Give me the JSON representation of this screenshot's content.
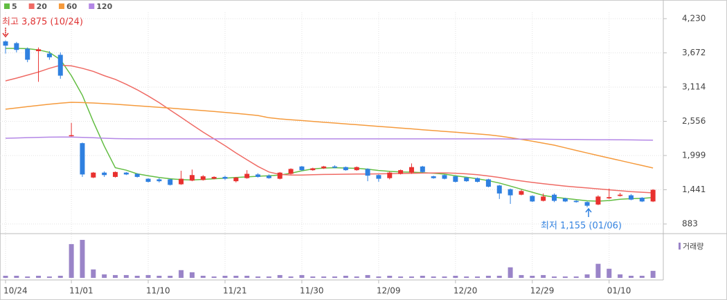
{
  "chart_data": {
    "type": "candlestick",
    "categories": [
      "10/24",
      null,
      null,
      null,
      null,
      null,
      "11/01",
      null,
      null,
      null,
      null,
      null,
      null,
      "11/10",
      null,
      null,
      null,
      null,
      null,
      null,
      "11/21",
      null,
      null,
      null,
      null,
      null,
      null,
      "11/30",
      null,
      null,
      null,
      null,
      null,
      null,
      "12/09",
      null,
      null,
      null,
      null,
      null,
      null,
      "12/20",
      null,
      null,
      null,
      null,
      null,
      null,
      "12/29",
      null,
      null,
      null,
      null,
      null,
      null,
      "01/10",
      null,
      null,
      null,
      null
    ],
    "open": [
      3860,
      3830,
      3740,
      3700,
      3660,
      3640,
      2320,
      2200,
      1640,
      1720,
      1650,
      1720,
      1700,
      1620,
      1610,
      1610,
      1530,
      1590,
      1600,
      1620,
      1650,
      1580,
      1630,
      1690,
      1670,
      1620,
      1700,
      1820,
      1760,
      1790,
      1820,
      1810,
      1760,
      1780,
      1680,
      1630,
      1700,
      1720,
      1820,
      1660,
      1680,
      1660,
      1640,
      1630,
      1610,
      1510,
      1450,
      1360,
      1340,
      1260,
      1360,
      1300,
      1260,
      1240,
      1200,
      1300,
      1340,
      1350,
      1310,
      1250
    ],
    "close": [
      3790,
      3720,
      3560,
      3730,
      3600,
      3300,
      2330,
      1690,
      1720,
      1680,
      1730,
      1690,
      1650,
      1570,
      1580,
      1520,
      1620,
      1680,
      1660,
      1650,
      1620,
      1640,
      1700,
      1650,
      1630,
      1720,
      1780,
      1760,
      1790,
      1820,
      1800,
      1760,
      1810,
      1670,
      1620,
      1720,
      1760,
      1810,
      1730,
      1630,
      1620,
      1570,
      1580,
      1570,
      1490,
      1380,
      1350,
      1420,
      1250,
      1330,
      1260,
      1250,
      1240,
      1180,
      1330,
      1320,
      1360,
      1280,
      1250,
      1440
    ],
    "high": [
      3875,
      3850,
      3760,
      3760,
      3700,
      3680,
      2530,
      2210,
      1730,
      1740,
      1740,
      1730,
      1710,
      1630,
      1630,
      1620,
      1750,
      1770,
      1680,
      1660,
      1670,
      1650,
      1760,
      1710,
      1690,
      1730,
      1790,
      1830,
      1800,
      1830,
      1840,
      1820,
      1820,
      1790,
      1690,
      1740,
      1770,
      1870,
      1830,
      1670,
      1690,
      1670,
      1650,
      1640,
      1620,
      1520,
      1460,
      1440,
      1350,
      1380,
      1380,
      1310,
      1270,
      1250,
      1350,
      1460,
      1390,
      1370,
      1320,
      1450
    ],
    "low": [
      3660,
      3680,
      3520,
      3200,
      3560,
      3250,
      2310,
      1650,
      1630,
      1650,
      1640,
      1680,
      1640,
      1560,
      1560,
      1510,
      1520,
      1580,
      1590,
      1610,
      1600,
      1560,
      1620,
      1640,
      1620,
      1610,
      1690,
      1750,
      1750,
      1780,
      1790,
      1750,
      1750,
      1580,
      1570,
      1610,
      1690,
      1700,
      1720,
      1620,
      1610,
      1560,
      1570,
      1560,
      1480,
      1290,
      1210,
      1350,
      1240,
      1250,
      1240,
      1240,
      1230,
      1155,
      1190,
      1290,
      1330,
      1270,
      1240,
      1240
    ],
    "up_color": "#e8312f",
    "down_color": "#2f80e0",
    "series": [
      {
        "name": "5",
        "color": "#62bd42",
        "values": [
          3745,
          3745,
          3740,
          3720,
          3680,
          3560,
          3300,
          2980,
          2550,
          2150,
          1800,
          1760,
          1700,
          1670,
          1640,
          1620,
          1605,
          1600,
          1610,
          1620,
          1630,
          1640,
          1650,
          1660,
          1670,
          1680,
          1710,
          1750,
          1780,
          1795,
          1800,
          1795,
          1790,
          1775,
          1755,
          1740,
          1730,
          1728,
          1720,
          1710,
          1695,
          1670,
          1645,
          1620,
          1590,
          1550,
          1500,
          1450,
          1400,
          1350,
          1320,
          1300,
          1280,
          1260,
          1255,
          1265,
          1285,
          1295,
          1300,
          1315
        ]
      },
      {
        "name": "20",
        "color": "#ef6a64",
        "values": [
          3216,
          3260,
          3310,
          3360,
          3420,
          3470,
          3460,
          3420,
          3370,
          3300,
          3240,
          3160,
          3070,
          2970,
          2860,
          2740,
          2620,
          2500,
          2380,
          2270,
          2160,
          2040,
          1930,
          1820,
          1730,
          1690,
          1680,
          1680,
          1685,
          1690,
          1692,
          1694,
          1696,
          1698,
          1700,
          1702,
          1705,
          1708,
          1712,
          1715,
          1716,
          1710,
          1700,
          1685,
          1665,
          1640,
          1610,
          1585,
          1560,
          1540,
          1520,
          1500,
          1485,
          1470,
          1455,
          1440,
          1425,
          1410,
          1400,
          1390
        ]
      },
      {
        "name": "60",
        "color": "#f59a3c",
        "values": [
          2754,
          2775,
          2795,
          2815,
          2835,
          2852,
          2866,
          2862,
          2855,
          2845,
          2835,
          2822,
          2810,
          2797,
          2784,
          2771,
          2758,
          2745,
          2731,
          2717,
          2702,
          2686,
          2669,
          2651,
          2615,
          2596,
          2582,
          2569,
          2555,
          2541,
          2528,
          2514,
          2501,
          2487,
          2473,
          2460,
          2446,
          2433,
          2419,
          2405,
          2392,
          2378,
          2365,
          2351,
          2337,
          2315,
          2290,
          2262,
          2232,
          2200,
          2168,
          2125,
          2082,
          2040,
          1999,
          1958,
          1917,
          1877,
          1836,
          1796
        ]
      },
      {
        "name": "120",
        "color": "#b386e6",
        "values": [
          2280,
          2285,
          2290,
          2295,
          2298,
          2300,
          2300,
          2295,
          2288,
          2280,
          2275,
          2272,
          2270,
          2270,
          2270,
          2270,
          2270,
          2270,
          2270,
          2270,
          2270,
          2270,
          2270,
          2270,
          2270,
          2270,
          2270,
          2270,
          2270,
          2270,
          2270,
          2270,
          2270,
          2270,
          2270,
          2270,
          2270,
          2270,
          2270,
          2270,
          2270,
          2270,
          2270,
          2270,
          2270,
          2270,
          2268,
          2266,
          2265,
          2264,
          2262,
          2261,
          2260,
          2258,
          2257,
          2256,
          2254,
          2253,
          2251,
          2250
        ]
      }
    ],
    "ylim": [
      759,
      4331
    ],
    "yticks": [
      {
        "value": 4230,
        "label": "4,230"
      },
      {
        "value": 3672,
        "label": "3,672"
      },
      {
        "value": 3114,
        "label": "3,114"
      },
      {
        "value": 2556,
        "label": "2,556"
      },
      {
        "value": 1999,
        "label": "1,999"
      },
      {
        "value": 1441,
        "label": "1,441"
      },
      883
    ],
    "volume_name": "거래량",
    "volume_color": "#9a84c8",
    "volume": [
      3,
      3,
      2,
      3,
      2,
      3,
      48,
      54,
      12,
      5,
      4,
      4,
      3,
      4,
      3,
      3,
      11,
      8,
      3,
      2,
      3,
      3,
      3,
      2,
      2,
      4,
      2,
      4,
      2,
      2,
      2,
      3,
      2,
      4,
      2,
      3,
      2,
      2,
      3,
      2,
      2,
      3,
      2,
      2,
      3,
      3,
      15,
      4,
      3,
      4,
      2,
      2,
      2,
      5,
      20,
      13,
      5,
      3,
      3,
      10
    ],
    "volume_ylim": [
      0,
      56
    ],
    "annotations": [
      {
        "text": "최고 3,875 (10/24)",
        "color": "#e03030"
      },
      {
        "text": "최저 1,155 (01/06)",
        "color": "#2f80e0"
      }
    ]
  }
}
